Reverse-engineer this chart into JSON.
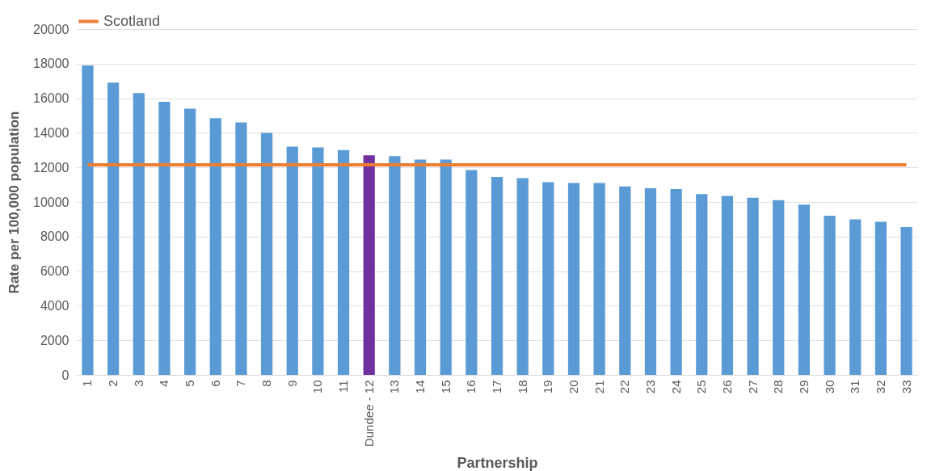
{
  "chart_data": {
    "type": "bar",
    "xlabel": "Partnership",
    "ylabel": "Rate per 100,000 population",
    "categories": [
      "1",
      "2",
      "3",
      "4",
      "5",
      "6",
      "7",
      "8",
      "9",
      "10",
      "11",
      "Dundee - 12",
      "13",
      "14",
      "15",
      "16",
      "17",
      "18",
      "19",
      "20",
      "21",
      "22",
      "23",
      "24",
      "25",
      "26",
      "27",
      "28",
      "29",
      "30",
      "31",
      "32",
      "33"
    ],
    "series": [
      {
        "values": [
          17900,
          16900,
          16300,
          15800,
          15400,
          14850,
          14600,
          14000,
          13200,
          13150,
          13000,
          12700,
          12650,
          12450,
          12450,
          11850,
          11450,
          11380,
          11150,
          11100,
          11100,
          10900,
          10800,
          10750,
          10450,
          10350,
          10250,
          10100,
          9850,
          9200,
          9000,
          8850,
          8550
        ],
        "colors": [
          "#5b9bd5",
          "#5b9bd5",
          "#5b9bd5",
          "#5b9bd5",
          "#5b9bd5",
          "#5b9bd5",
          "#5b9bd5",
          "#5b9bd5",
          "#5b9bd5",
          "#5b9bd5",
          "#5b9bd5",
          "#7030a0",
          "#5b9bd5",
          "#5b9bd5",
          "#5b9bd5",
          "#5b9bd5",
          "#5b9bd5",
          "#5b9bd5",
          "#5b9bd5",
          "#5b9bd5",
          "#5b9bd5",
          "#5b9bd5",
          "#5b9bd5",
          "#5b9bd5",
          "#5b9bd5",
          "#5b9bd5",
          "#5b9bd5",
          "#5b9bd5",
          "#5b9bd5",
          "#5b9bd5",
          "#5b9bd5",
          "#5b9bd5",
          "#5b9bd5"
        ]
      },
      {
        "type": "line",
        "name": "Scotland",
        "color": "#ed7d31",
        "values": [
          12150,
          12150,
          12150,
          12150,
          12150,
          12150,
          12150,
          12150,
          12150,
          12150,
          12150,
          12150,
          12150,
          12150,
          12150,
          12150,
          12150,
          12150,
          12150,
          12150,
          12150,
          12150,
          12150,
          12150,
          12150,
          12150,
          12150,
          12150,
          12150,
          12150,
          12150,
          12150,
          12150
        ]
      }
    ],
    "ylim": [
      0,
      20000
    ],
    "yticks": [
      0,
      2000,
      4000,
      6000,
      8000,
      10000,
      12000,
      14000,
      16000,
      18000,
      20000
    ],
    "grid": "y",
    "legend": "top",
    "marker": "none"
  }
}
